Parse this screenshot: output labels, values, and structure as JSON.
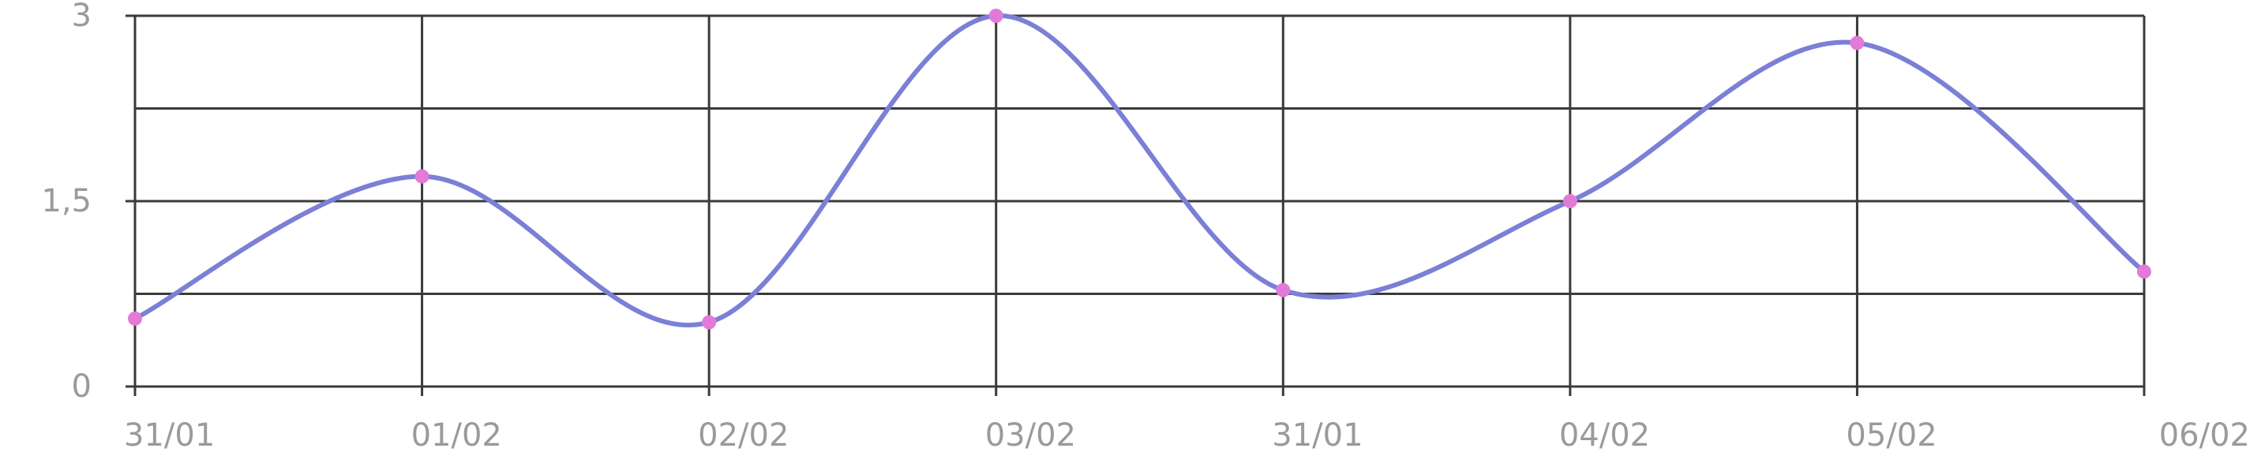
{
  "chart_data": {
    "type": "line",
    "categories": [
      "31/01",
      "01/02",
      "02/02",
      "03/02",
      "31/01",
      "04/02",
      "05/02",
      "06/02"
    ],
    "series": [
      {
        "values": [
          0.55,
          1.7,
          0.52,
          3.0,
          0.78,
          1.5,
          2.78,
          0.93
        ]
      }
    ],
    "yticks": [
      0,
      1.5,
      3
    ],
    "ytick_labels": [
      "0",
      "1,5",
      "3"
    ],
    "ylim": [
      0,
      3
    ],
    "grid": true,
    "smooth": true,
    "colors": {
      "line": "#7b7fd6",
      "point": "#e27ad8",
      "grid": "#3a3a3a",
      "tick_text": "#9a9a9a"
    },
    "title": "",
    "xlabel": "",
    "ylabel": ""
  }
}
